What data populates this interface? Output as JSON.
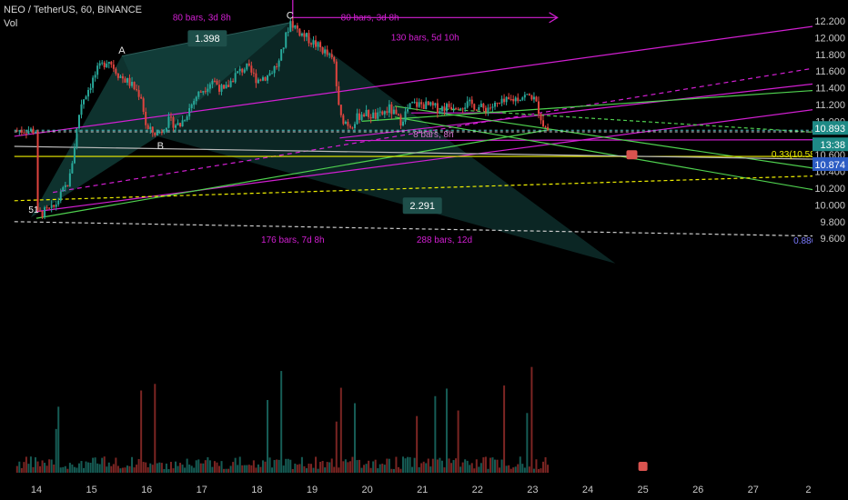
{
  "header": {
    "symbol_line": "NEO / TetherUS, 60, BINANCE",
    "volume_label": "Vol"
  },
  "chart_data": {
    "type": "candlestick",
    "symbol": "NEO / TetherUS",
    "interval": "60",
    "exchange": "BINANCE",
    "x_ticks": [
      "14",
      "15",
      "16",
      "17",
      "18",
      "19",
      "20",
      "21",
      "22",
      "23",
      "24",
      "25",
      "26",
      "27",
      "2"
    ],
    "y_ticks": [
      "12.200",
      "12.000",
      "11.800",
      "11.600",
      "11.400",
      "11.200",
      "11.000",
      "10.600",
      "10.400",
      "10.200",
      "10.000",
      "9.800",
      "9.600"
    ],
    "price_markers": {
      "last": "10.893",
      "countdown": "13:38",
      "secondary": "10.874"
    },
    "ylim": [
      9.55,
      12.28
    ],
    "price_path": [
      [
        14.0,
        9.88
      ],
      [
        14.3,
        9.95
      ],
      [
        14.6,
        10.3
      ],
      [
        14.8,
        11.2
      ],
      [
        15.1,
        11.6
      ],
      [
        15.3,
        11.75
      ],
      [
        15.5,
        11.55
      ],
      [
        15.7,
        11.45
      ],
      [
        15.9,
        11.3
      ],
      [
        16.0,
        10.9
      ],
      [
        16.2,
        10.85
      ],
      [
        16.4,
        11.0
      ],
      [
        16.6,
        10.95
      ],
      [
        16.9,
        11.3
      ],
      [
        17.2,
        11.5
      ],
      [
        17.4,
        11.35
      ],
      [
        17.6,
        11.55
      ],
      [
        17.8,
        11.65
      ],
      [
        18.0,
        11.5
      ],
      [
        18.2,
        11.55
      ],
      [
        18.4,
        11.7
      ],
      [
        18.6,
        12.2
      ],
      [
        18.8,
        12.05
      ],
      [
        19.0,
        11.95
      ],
      [
        19.2,
        11.85
      ],
      [
        19.4,
        11.7
      ],
      [
        19.5,
        11.05
      ],
      [
        19.7,
        10.95
      ],
      [
        19.9,
        11.1
      ],
      [
        20.2,
        11.05
      ],
      [
        20.4,
        11.15
      ],
      [
        20.6,
        11.0
      ],
      [
        20.8,
        11.2
      ],
      [
        21.0,
        11.2
      ],
      [
        21.3,
        11.15
      ],
      [
        21.6,
        11.2
      ],
      [
        21.9,
        11.2
      ],
      [
        22.1,
        11.15
      ],
      [
        22.4,
        11.2
      ],
      [
        22.6,
        11.25
      ],
      [
        22.8,
        11.3
      ],
      [
        23.0,
        11.3
      ],
      [
        23.1,
        11.15
      ],
      [
        23.2,
        10.95
      ],
      [
        23.3,
        10.89
      ]
    ],
    "annotations": [
      {
        "text": "A",
        "x": 15.55,
        "y": 11.84
      },
      {
        "text": "B",
        "x": 16.25,
        "y": 10.7
      },
      {
        "text": "C",
        "x": 18.6,
        "y": 12.26
      },
      {
        "text": "1.398",
        "x": 17.1,
        "y": 11.98
      },
      {
        "text": "2.291",
        "x": 21.0,
        "y": 9.98
      },
      {
        "text": "0.33(10.581)",
        "x": 27.8,
        "y": 10.6
      },
      {
        "text": "80 bars, 3d 8h",
        "x": 17.0,
        "y": 12.24
      },
      {
        "text": "80 bars, 3d 8h",
        "x": 20.05,
        "y": 12.24
      },
      {
        "text": "130 bars, 5d 10h",
        "x": 21.05,
        "y": 12.0
      },
      {
        "text": "8 bars, 8h",
        "x": 21.2,
        "y": 10.84
      },
      {
        "text": "176 bars, 7d 8h",
        "x": 18.65,
        "y": 9.58
      },
      {
        "text": "288 bars, 12d",
        "x": 21.4,
        "y": 9.58
      },
      {
        "text": "51",
        "x": 13.95,
        "y": 9.94
      },
      {
        "text": "0.886(9.456)",
        "x": 28.2,
        "y": 9.57
      }
    ]
  },
  "colors": {
    "background": "#000000",
    "magenta": "#d21fd2",
    "green": "#4fd14f",
    "yellow": "#f0f000",
    "pattern_fill": "#1f6e66",
    "up_candle": "#28a89a",
    "down_candle": "#e0443f",
    "price_line": "#4cc0c0"
  }
}
